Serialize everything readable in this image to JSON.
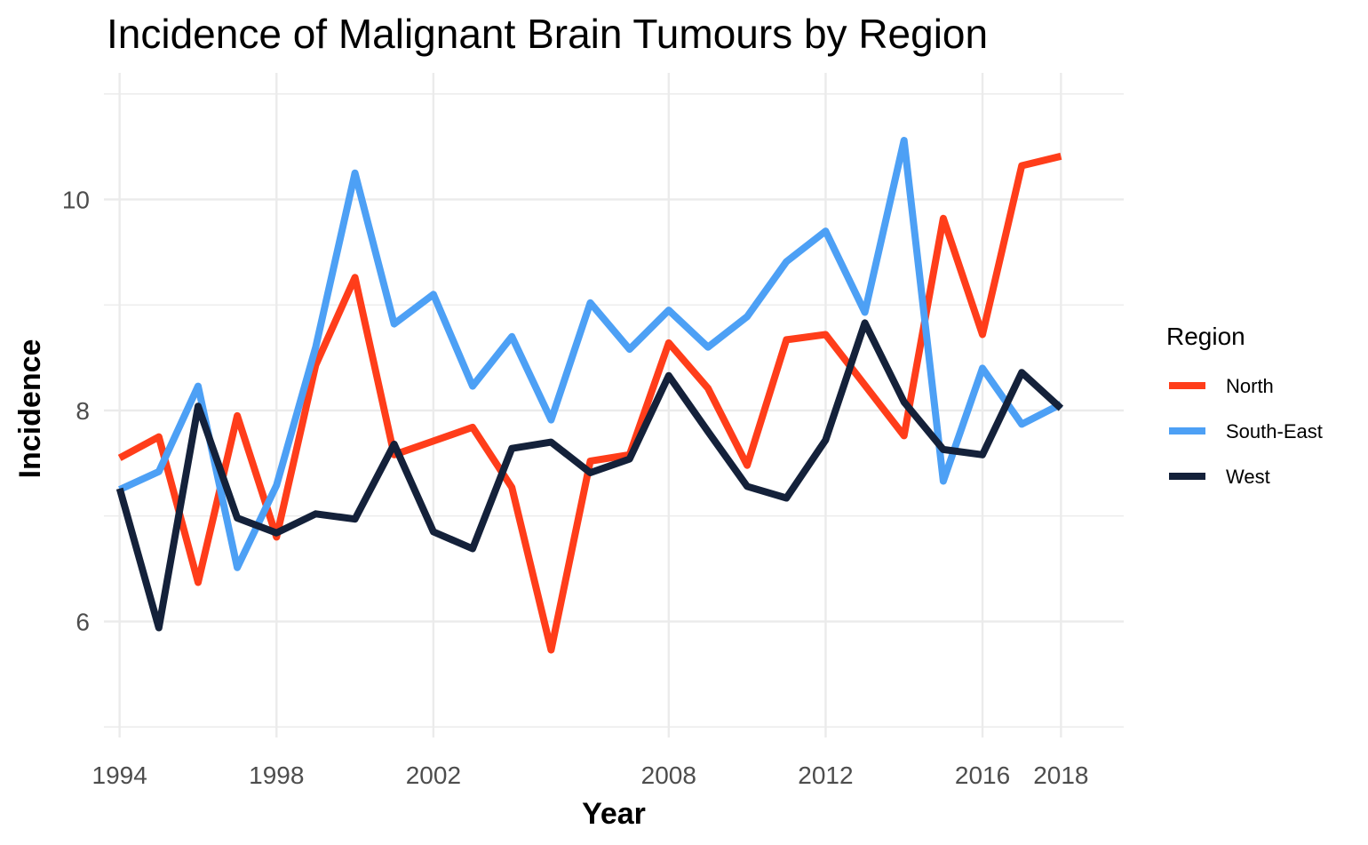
{
  "chart_data": {
    "type": "line",
    "title": "Incidence of Malignant Brain Tumours by Region",
    "xlabel": "Year",
    "ylabel": "Incidence",
    "xlim": [
      1993.6,
      2019.6
    ],
    "ylim": [
      4.9,
      11.2
    ],
    "x_ticks": [
      1994,
      1998,
      2002,
      2008,
      2012,
      2016,
      2018
    ],
    "y_ticks": [
      6,
      8,
      10
    ],
    "y_minor_ticks": [
      5,
      7,
      9,
      11
    ],
    "grid": true,
    "legend": {
      "title": "Region",
      "position": "right"
    },
    "x": [
      1994,
      1995,
      1996,
      1997,
      1998,
      1999,
      2000,
      2001,
      2002,
      2003,
      2004,
      2005,
      2006,
      2007,
      2008,
      2009,
      2010,
      2011,
      2012,
      2013,
      2014,
      2015,
      2016,
      2017,
      2018
    ],
    "series": [
      {
        "name": "North",
        "color": "#FF3D1A",
        "values": [
          7.55,
          7.75,
          6.37,
          7.95,
          6.8,
          8.43,
          9.26,
          7.58,
          7.71,
          7.84,
          7.27,
          5.73,
          7.52,
          7.58,
          8.64,
          8.21,
          7.48,
          8.67,
          8.72,
          8.24,
          7.76,
          9.82,
          8.72,
          10.32,
          10.41
        ]
      },
      {
        "name": "South-East",
        "color": "#4DA0F5",
        "values": [
          7.25,
          7.42,
          8.23,
          6.51,
          7.29,
          8.6,
          10.25,
          8.82,
          9.1,
          8.23,
          8.7,
          7.91,
          9.02,
          8.58,
          8.95,
          8.6,
          8.89,
          9.41,
          9.7,
          8.93,
          10.56,
          7.33,
          8.4,
          7.87,
          8.06
        ]
      },
      {
        "name": "West",
        "color": "#14213A",
        "values": [
          7.26,
          5.94,
          8.04,
          6.98,
          6.84,
          7.02,
          6.97,
          7.68,
          6.85,
          6.69,
          7.64,
          7.7,
          7.41,
          7.54,
          8.33,
          7.8,
          7.28,
          7.17,
          7.72,
          8.83,
          8.08,
          7.63,
          7.58,
          8.36,
          8.02
        ]
      }
    ]
  }
}
